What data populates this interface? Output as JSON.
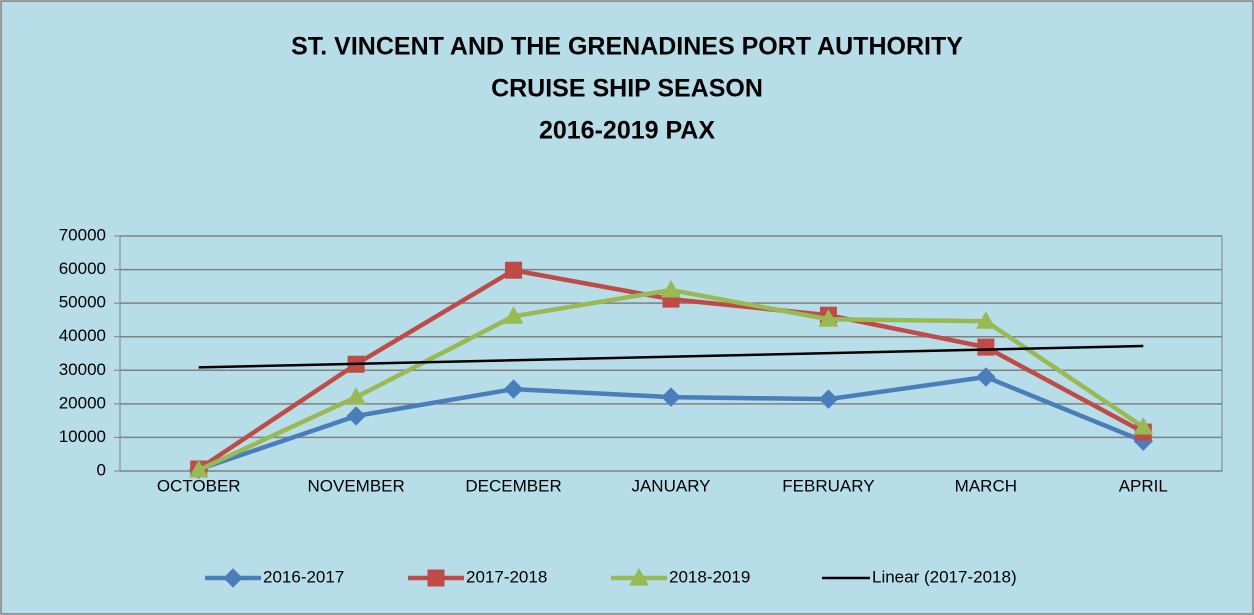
{
  "chart_data": {
    "type": "line",
    "title": [
      "ST. VINCENT AND THE GRENADINES PORT AUTHORITY",
      "CRUISE SHIP SEASON",
      "2016-2019 PAX"
    ],
    "categories": [
      "OCTOBER",
      "NOVEMBER",
      "DECEMBER",
      "JANUARY",
      "FEBRUARY",
      "MARCH",
      "APRIL"
    ],
    "series": [
      {
        "name": "2016-2017",
        "color": "#4a7ebb",
        "marker": "diamond",
        "values": [
          500,
          16400,
          24400,
          22000,
          21400,
          28000,
          8900
        ]
      },
      {
        "name": "2017-2018",
        "color": "#be4b48",
        "marker": "square",
        "values": [
          600,
          31800,
          59800,
          51200,
          46400,
          36900,
          11600
        ]
      },
      {
        "name": "2018-2019",
        "color": "#98b954",
        "marker": "triangle",
        "values": [
          300,
          22000,
          46100,
          53900,
          45200,
          44600,
          13100
        ]
      }
    ],
    "trendline": {
      "name": "Linear (2017-2018)",
      "type": "linear",
      "color": "#000000",
      "series_index": 1
    },
    "ylim": [
      0,
      70000
    ],
    "yticks": [
      0,
      10000,
      20000,
      30000,
      40000,
      50000,
      60000,
      70000
    ],
    "grid": true
  }
}
